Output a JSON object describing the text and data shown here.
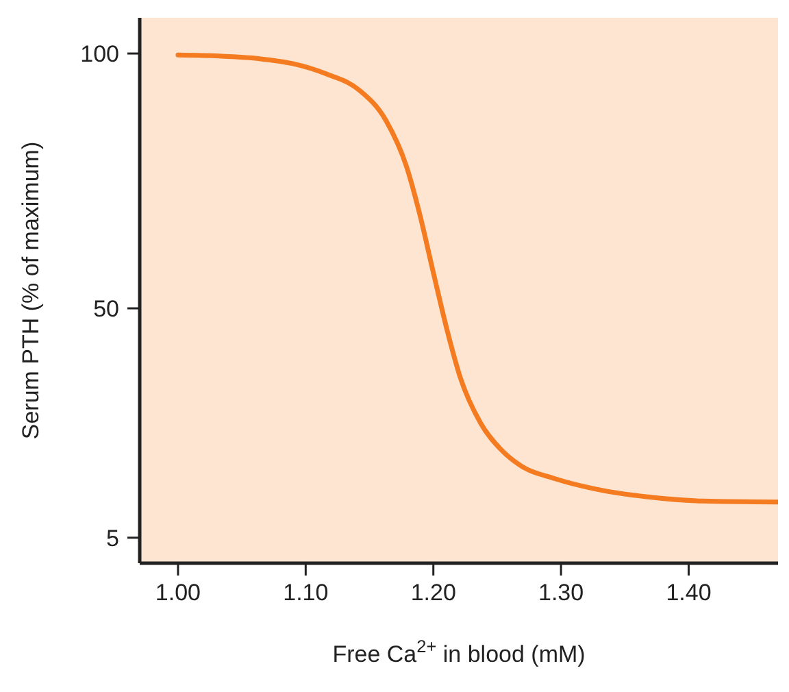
{
  "chart_data": {
    "type": "line",
    "xlabel": "Free Ca$^{2+}$ in blood (mM)",
    "ylabel": "Serum PTH (% of maximum)",
    "x": [
      1.0,
      1.032,
      1.063,
      1.09,
      1.116,
      1.142,
      1.163,
      1.179,
      1.189,
      1.2,
      1.211,
      1.221,
      1.237,
      1.253,
      1.268,
      1.295,
      1.326,
      1.368,
      1.411,
      1.47
    ],
    "series": [
      {
        "color": "#f47b20",
        "values": [
          99.7,
          99.5,
          99,
          98,
          96,
          92.8,
          86.8,
          77.8,
          68.8,
          57,
          45.5,
          36.5,
          27.5,
          22.3,
          19.2,
          16.6,
          14.6,
          13,
          12.2,
          12
        ]
      }
    ],
    "xlim": [
      0.97,
      1.47
    ],
    "xticks": [
      {
        "value": 1.0,
        "label": "1.00"
      },
      {
        "value": 1.1,
        "label": "1.10"
      },
      {
        "value": 1.2,
        "label": "1.20"
      },
      {
        "value": 1.3,
        "label": "1.30"
      },
      {
        "value": 1.4,
        "label": "1.40"
      }
    ],
    "ylim": [
      0,
      107
    ],
    "yticks": [
      5,
      50,
      100
    ],
    "grid": false,
    "legend": false,
    "marker": "none",
    "line_style": "solid"
  }
}
